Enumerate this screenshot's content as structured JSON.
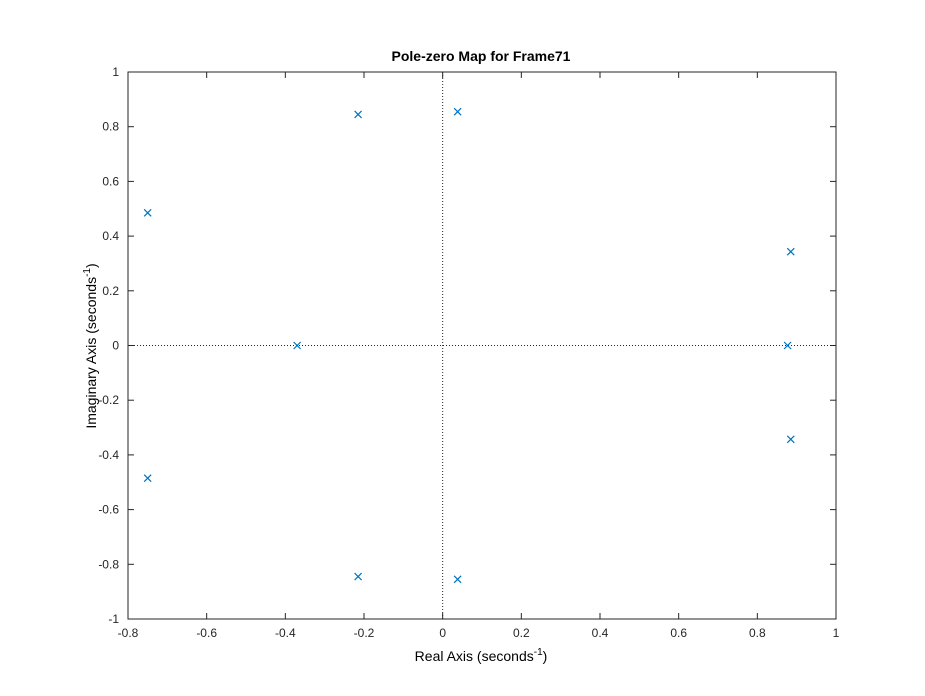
{
  "chart_data": {
    "type": "scatter",
    "title": "Pole-zero Map for Frame71",
    "xlabel": {
      "text": "Real Axis (seconds",
      "superscript": "-1",
      "suffix": ")"
    },
    "ylabel": {
      "text": "Imaginary Axis (seconds",
      "superscript": "-1",
      "suffix": ")"
    },
    "xlim": [
      -0.8,
      1
    ],
    "ylim": [
      -1,
      1
    ],
    "xticks": [
      -0.8,
      -0.6,
      -0.4,
      -0.2,
      0,
      0.2,
      0.4,
      0.6,
      0.8,
      1
    ],
    "yticks": [
      -1,
      -0.8,
      -0.6,
      -0.4,
      -0.2,
      0,
      0.2,
      0.4,
      0.6,
      0.8,
      1
    ],
    "xtick_labels": [
      "-0.8",
      "-0.6",
      "-0.4",
      "-0.2",
      "0",
      "0.2",
      "0.4",
      "0.6",
      "0.8",
      "1"
    ],
    "ytick_labels": [
      "-1",
      "-0.8",
      "-0.6",
      "-0.4",
      "-0.2",
      "0",
      "0.2",
      "0.4",
      "0.6",
      "0.8",
      "1"
    ],
    "grid": false,
    "reference_lines": "dotted lines at x = 0 and y = 0",
    "marker": "x",
    "colors": {
      "marker": "#0072BD",
      "axes": "#262626",
      "reference": "#262626"
    },
    "series": [
      {
        "points": [
          {
            "x": -0.75,
            "y": 0.485
          },
          {
            "x": -0.75,
            "y": -0.485
          },
          {
            "x": -0.37,
            "y": 0.0
          },
          {
            "x": -0.215,
            "y": 0.845
          },
          {
            "x": -0.215,
            "y": -0.845
          },
          {
            "x": 0.038,
            "y": 0.855
          },
          {
            "x": 0.038,
            "y": -0.855
          },
          {
            "x": 0.885,
            "y": 0.343
          },
          {
            "x": 0.885,
            "y": -0.343
          },
          {
            "x": 0.877,
            "y": 0.0
          }
        ]
      }
    ]
  }
}
